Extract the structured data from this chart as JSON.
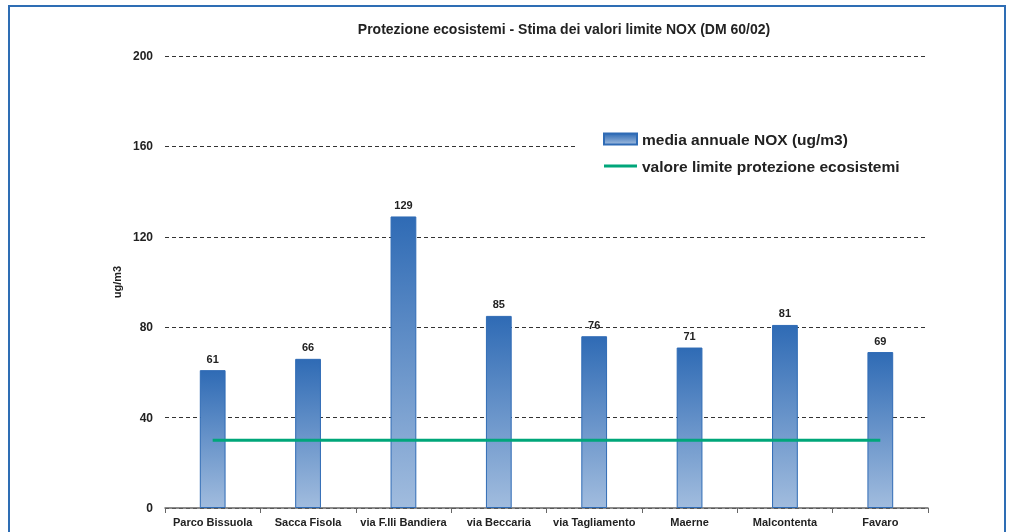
{
  "chart_data": {
    "type": "bar",
    "title": "Protezione ecosistemi - Stima dei valori limite NOX (DM 60/02)",
    "ylabel": "ug/m3",
    "categories": [
      "Parco Bissuola",
      "Sacca Fisola",
      "via F.lli Bandiera",
      "via Beccaria",
      "via Tagliamento",
      "Maerne",
      "Malcontenta",
      "Favaro"
    ],
    "series": [
      {
        "name": "media annuale NOX (ug/m3)",
        "color": "#2f6bb5",
        "values": [
          61,
          66,
          129,
          85,
          76,
          71,
          81,
          69
        ],
        "value_labels": [
          "61",
          "66",
          "129",
          "85",
          "76",
          "71",
          "81",
          "69"
        ]
      },
      {
        "name": "valore limite protezione ecosistemi",
        "type": "line",
        "color": "#00a67a",
        "values": [
          30,
          30,
          30,
          30,
          30,
          30,
          30,
          30
        ]
      }
    ],
    "ylim": [
      0,
      200
    ],
    "yticks": [
      0,
      40,
      80,
      120,
      160,
      200
    ],
    "grid": "y",
    "legend": "top right",
    "marker": "none",
    "line_style": "solid"
  }
}
